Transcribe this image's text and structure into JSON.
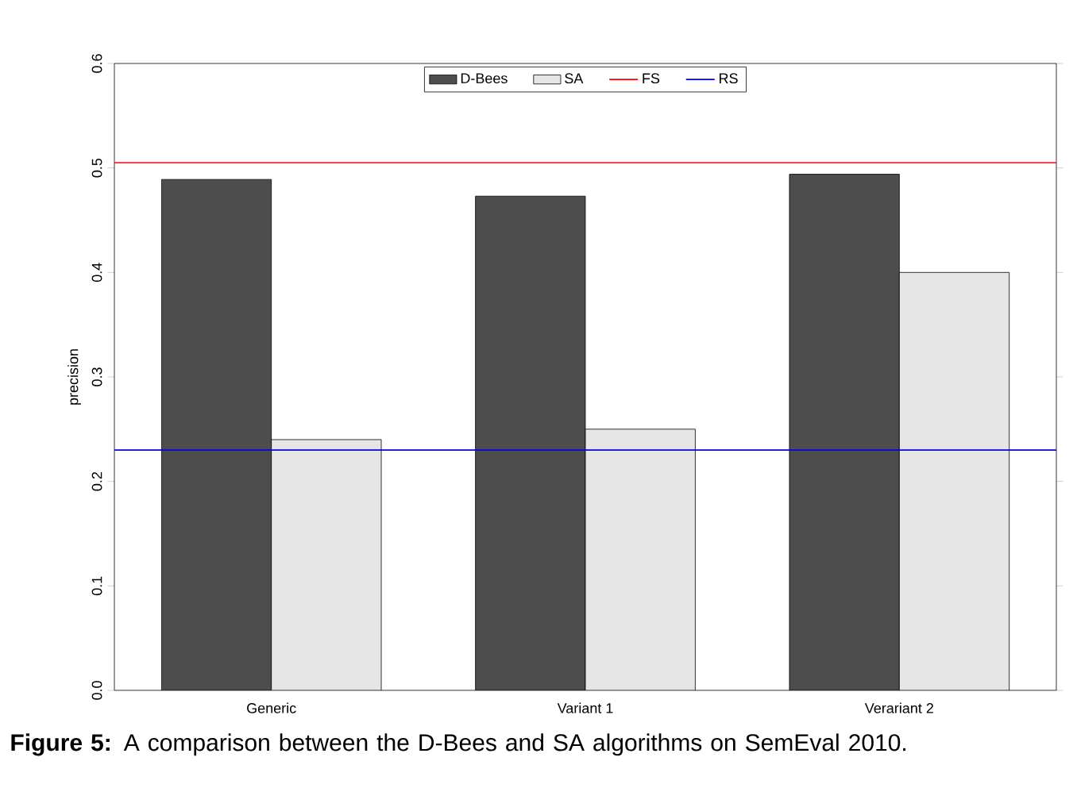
{
  "chart_data": {
    "type": "bar",
    "ylabel": "precision",
    "categories": [
      "Generic",
      "Variant 1",
      "Verariant 2"
    ],
    "series": [
      {
        "name": "D-Bees",
        "color": "#4d4d4d",
        "values": [
          0.489,
          0.473,
          0.494
        ]
      },
      {
        "name": "SA",
        "color": "#e6e6e6",
        "values": [
          0.24,
          0.25,
          0.4
        ]
      }
    ],
    "ylim": [
      0,
      0.6
    ],
    "yticks": [
      {
        "value": 0,
        "label": "0.0"
      },
      0.1,
      0.2,
      0.3,
      0.4,
      0.5,
      0.6
    ],
    "ref_lines": [
      {
        "axis": "y",
        "value": 0.505,
        "label": "FS",
        "color": "#ff0000"
      },
      {
        "axis": "y",
        "value": 0.23,
        "label": "RS",
        "color": "#0000ff"
      }
    ],
    "legend": "top",
    "annotations": [
      "**Figure 5:** A comparison between the D-Bees and SA algorithms on SemEval 2010."
    ]
  }
}
